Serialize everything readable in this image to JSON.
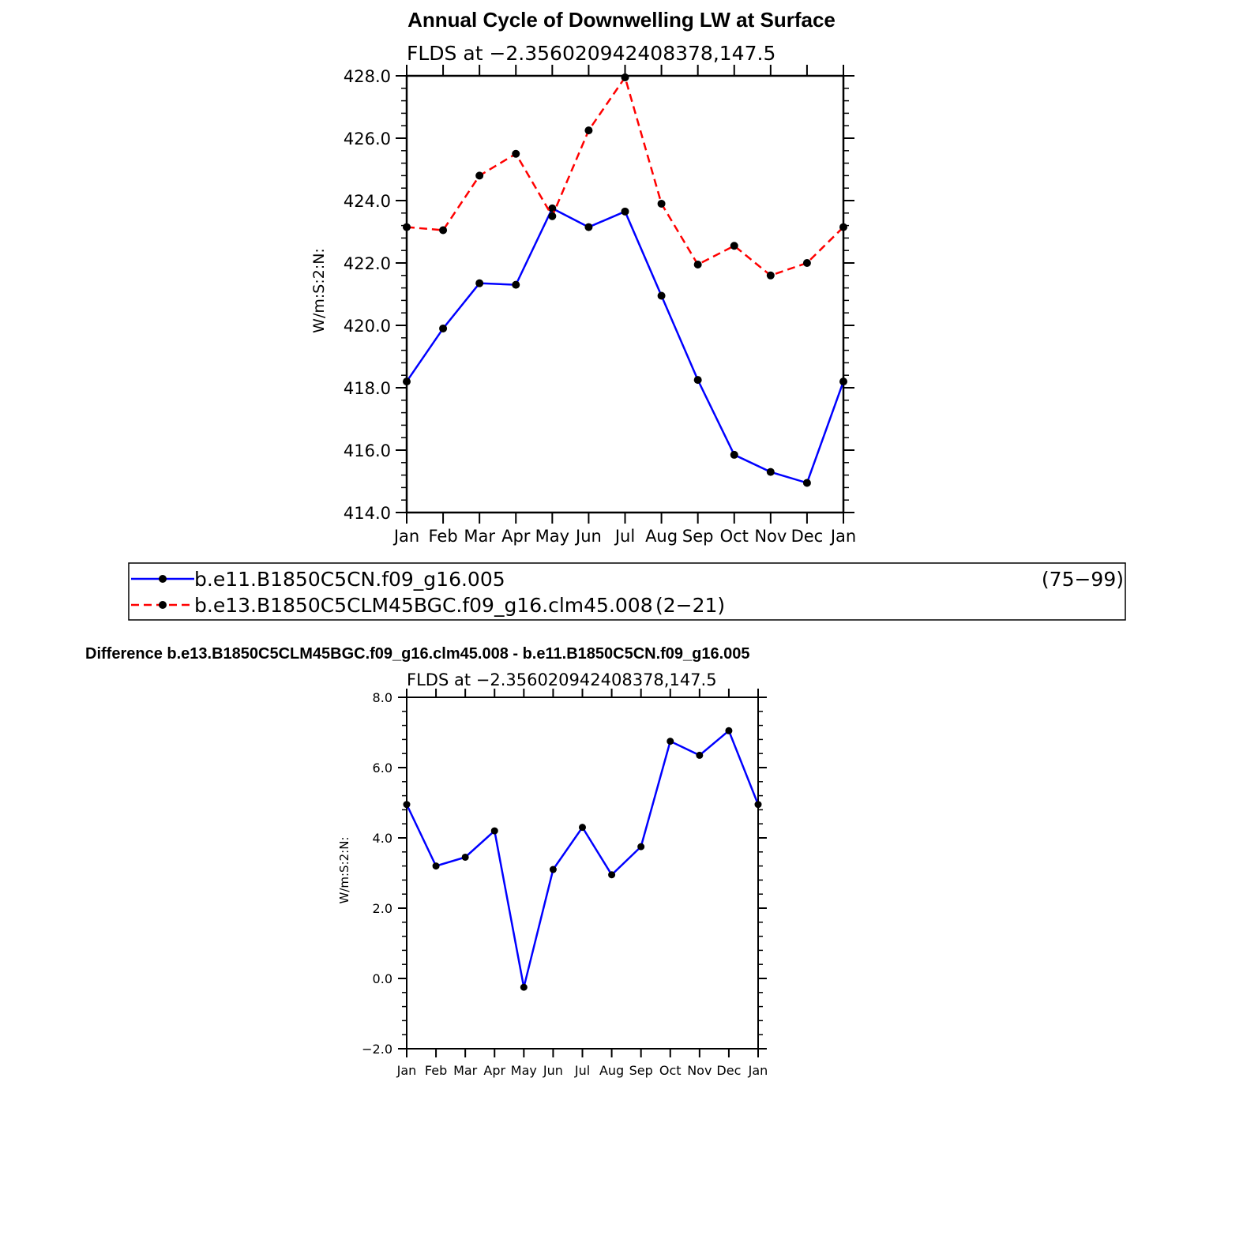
{
  "chart_data": [
    {
      "type": "line",
      "title": "Annual Cycle of Downwelling LW at Surface",
      "subtitle": "FLDS at −2.356020942408378,147.5",
      "xlabel": "",
      "ylabel": "W/m:S:2:N:",
      "categories": [
        "Jan",
        "Feb",
        "Mar",
        "Apr",
        "May",
        "Jun",
        "Jul",
        "Aug",
        "Sep",
        "Oct",
        "Nov",
        "Dec",
        "Jan"
      ],
      "ylim": [
        414,
        428
      ],
      "yticks": [
        "414.0",
        "416.0",
        "418.0",
        "420.0",
        "422.0",
        "424.0",
        "426.0",
        "428.0"
      ],
      "series": [
        {
          "name": "b.e11.B1850C5CN.f09_g16.005",
          "years": "(75−99)",
          "color": "#0000ff",
          "dash": "solid",
          "values": [
            418.2,
            419.9,
            421.35,
            421.3,
            423.75,
            423.15,
            423.65,
            420.95,
            418.25,
            415.85,
            415.3,
            414.95,
            418.2
          ]
        },
        {
          "name": "b.e13.B1850C5CLM45BGC.f09_g16.clm45.008",
          "years": "(2−21)",
          "color": "#ff0000",
          "dash": "dashed",
          "values": [
            423.15,
            423.05,
            424.8,
            425.5,
            423.5,
            426.25,
            427.95,
            423.9,
            421.95,
            422.55,
            421.6,
            422.0,
            423.15
          ]
        }
      ]
    },
    {
      "type": "line",
      "title": "Difference b.e13.B1850C5CLM45BGC.f09_g16.clm45.008 - b.e11.B1850C5CN.f09_g16.005",
      "subtitle": "FLDS at −2.356020942408378,147.5",
      "xlabel": "",
      "ylabel": "W/m:S:2:N:",
      "categories": [
        "Jan",
        "Feb",
        "Mar",
        "Apr",
        "May",
        "Jun",
        "Jul",
        "Aug",
        "Sep",
        "Oct",
        "Nov",
        "Dec",
        "Jan"
      ],
      "ylim": [
        -2,
        8
      ],
      "yticks": [
        "−2.0",
        "0.0",
        "2.0",
        "4.0",
        "6.0",
        "8.0"
      ],
      "series": [
        {
          "color": "#0000ff",
          "dash": "solid",
          "values": [
            4.95,
            3.2,
            3.45,
            4.2,
            -0.25,
            3.1,
            4.3,
            2.95,
            3.75,
            6.75,
            6.35,
            7.05,
            4.95
          ]
        }
      ]
    }
  ]
}
